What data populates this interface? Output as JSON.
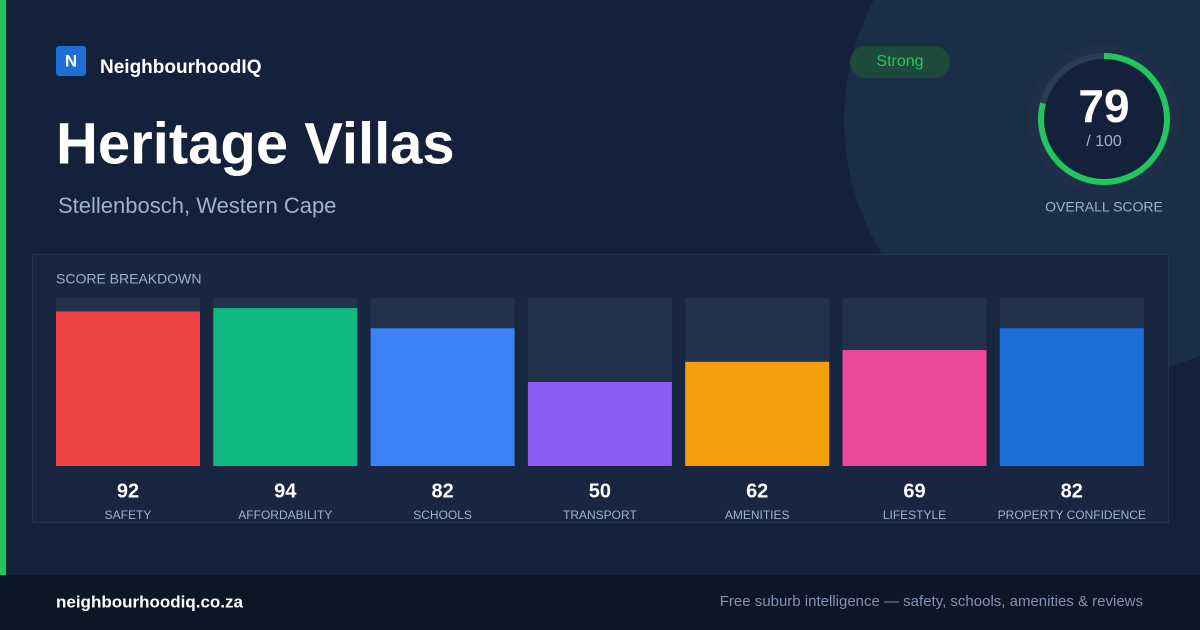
{
  "brand": {
    "logo": "N",
    "name": "NeighbourhoodIQ"
  },
  "title": "Heritage Villas",
  "location": "Stellenbosch, Western Cape",
  "badge": "Strong",
  "score": {
    "value": 79,
    "max": {
      "value": 100,
      "label": "/ 100"
    },
    "label": "OVERALL SCORE",
    "color": "#22c55e"
  },
  "breakdown": {
    "type": "bar",
    "title": "SCORE BREAKDOWN",
    "ylim": [
      0,
      100
    ],
    "categories": [
      "SAFETY",
      "AFFORDABILITY",
      "SCHOOLS",
      "TRANSPORT",
      "AMENITIES",
      "LIFESTYLE",
      "PROPERTY CONFIDENCE"
    ],
    "values": [
      92,
      94,
      82,
      50,
      62,
      69,
      82
    ],
    "colors": [
      "#ef4444",
      "#10b981",
      "#3b82f6",
      "#8b5cf6",
      "#f59e0b",
      "#ec4899",
      "#1d6fd6"
    ]
  },
  "footer": {
    "url": "neighbourhoodiq.co.za",
    "tagline": "Free suburb intelligence — safety, schools, amenities & reviews"
  }
}
